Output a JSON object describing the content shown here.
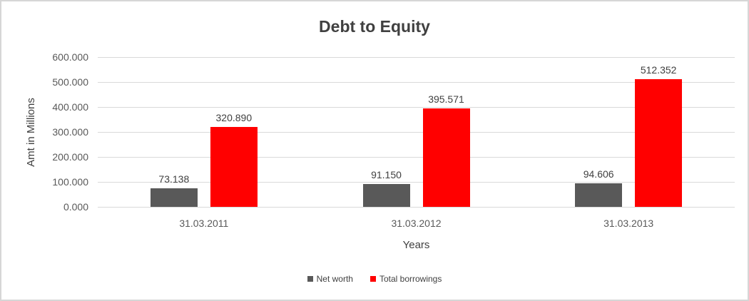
{
  "chart_data": {
    "type": "bar",
    "title": "Debt to Equity",
    "xlabel": "Years",
    "ylabel": "Amt in Millions",
    "categories": [
      "31.03.2011",
      "31.03.2012",
      "31.03.2013"
    ],
    "series": [
      {
        "name": "Net worth",
        "color": "#595959",
        "values": [
          73.138,
          91.15,
          94.606
        ],
        "labels": [
          "73.138",
          "91.150",
          "94.606"
        ]
      },
      {
        "name": "Total borrowings",
        "color": "#ff0000",
        "values": [
          320.89,
          395.571,
          512.352
        ],
        "labels": [
          "320.890",
          "395.571",
          "512.352"
        ]
      }
    ],
    "ylim": [
      0,
      600
    ],
    "ytick_labels": [
      "0.000",
      "100.000",
      "200.000",
      "300.000",
      "400.000",
      "500.000",
      "600.000"
    ],
    "grid": true,
    "legend_position": "bottom",
    "gridline_color": "#d9d9d9",
    "frame_border_color": "#d6d6d6"
  }
}
